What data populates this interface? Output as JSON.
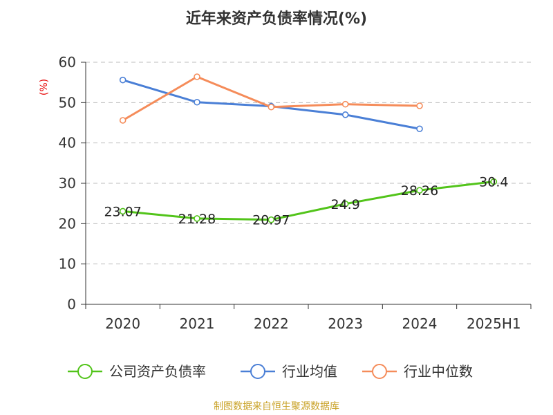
{
  "chart_data": {
    "type": "line",
    "title": "近年来资产负债率情况(%)",
    "ylabel": "(%)",
    "xlabel": "",
    "categories": [
      "2020",
      "2021",
      "2022",
      "2023",
      "2024",
      "2025H1"
    ],
    "ylim": [
      0,
      60
    ],
    "yticks": [
      0,
      10,
      20,
      30,
      40,
      50,
      60
    ],
    "grid": true,
    "legend_position": "bottom",
    "series": [
      {
        "name": "公司资产负债率",
        "color": "#52c41a",
        "values": [
          23.07,
          21.28,
          20.97,
          24.9,
          28.26,
          30.4
        ],
        "labels": [
          "23.07",
          "21.28",
          "20.97",
          "24.9",
          "28.26",
          "30.4"
        ]
      },
      {
        "name": "行业均值",
        "color": "#4a7fd6",
        "values": [
          55.6,
          50.1,
          49.1,
          47.0,
          43.5,
          null
        ]
      },
      {
        "name": "行业中位数",
        "color": "#f58c5a",
        "values": [
          45.6,
          56.4,
          48.9,
          49.6,
          49.2,
          null
        ]
      }
    ]
  },
  "footer": {
    "source": "制图数据来自恒生聚源数据库"
  }
}
